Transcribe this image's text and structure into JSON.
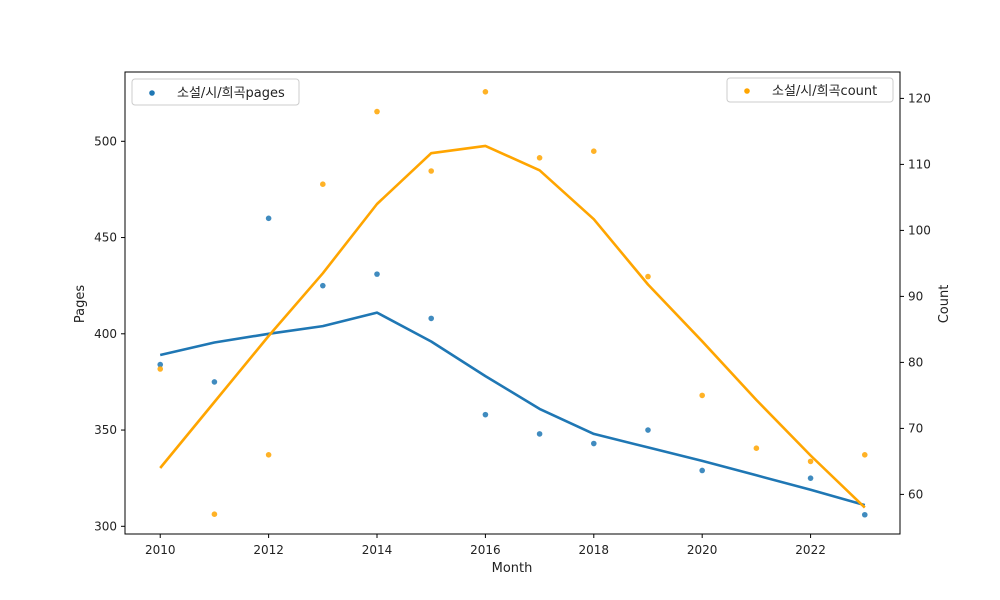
{
  "chart_data": {
    "type": "scatter",
    "title": "",
    "xlabel": "Month",
    "ylabel_left": "Pages",
    "ylabel_right": "Count",
    "x": [
      2010,
      2011,
      2012,
      2013,
      2014,
      2015,
      2016,
      2017,
      2018,
      2019,
      2020,
      2021,
      2022,
      2023
    ],
    "xlim": [
      2009.35,
      2023.65
    ],
    "xticks": [
      2010,
      2012,
      2014,
      2016,
      2018,
      2020,
      2022
    ],
    "ylim_left": [
      296,
      536
    ],
    "yticks_left": [
      300,
      350,
      400,
      450,
      500
    ],
    "ylim_right": [
      54,
      124
    ],
    "yticks_right": [
      60,
      70,
      80,
      90,
      100,
      110,
      120
    ],
    "grid": false,
    "series": [
      {
        "name": "소설/시/희곡pages",
        "axis": "left",
        "color": "#1f77b4",
        "points": [
          384,
          375,
          460,
          425,
          431,
          408,
          358,
          348,
          343,
          350,
          329,
          null,
          325,
          306
        ],
        "trend": [
          389,
          395.5,
          400,
          404,
          411,
          396,
          378,
          361,
          348,
          341,
          334,
          326.5,
          319,
          311
        ]
      },
      {
        "name": "소설/시/희곡count",
        "axis": "right",
        "color": "#ffa500",
        "points": [
          79,
          57,
          66,
          107,
          118,
          109,
          121,
          111,
          112,
          93,
          75,
          67,
          65,
          66
        ],
        "trend": [
          64,
          74,
          84,
          93.5,
          104,
          111.7,
          112.8,
          109.1,
          101.7,
          91.8,
          83.2,
          74.3,
          65.9,
          58
        ]
      }
    ],
    "legend": [
      {
        "label": "소설/시/희곡pages",
        "placement": "top-left"
      },
      {
        "label": "소설/시/희곡count",
        "placement": "top-right"
      }
    ]
  }
}
